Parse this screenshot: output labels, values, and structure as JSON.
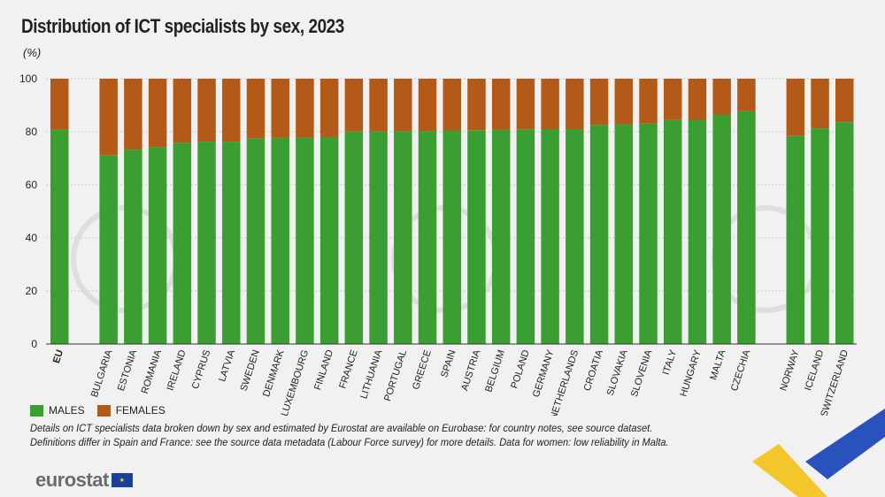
{
  "title": "Distribution of ICT specialists by sex, 2023",
  "unit": "(%)",
  "legend": {
    "males": "MALES",
    "females": "FEMALES"
  },
  "colors": {
    "males": "#3a9e32",
    "females": "#b35a19",
    "grid": "#c9c9c9",
    "axis": "#333333"
  },
  "notes": [
    "Details on ICT specialists data broken down by sex and estimated by Eurostat are available on Eurobase: for country notes, see source dataset.",
    "Definitions differ in Spain and France: see the source data metadata (Labour Force survey) for more details. Data for women: low reliability in Malta."
  ],
  "logo": {
    "text": "eurostat",
    "icon": "eu-flag-icon"
  },
  "chart_data": {
    "type": "bar",
    "stacked": true,
    "title": "Distribution of ICT specialists by sex, 2023",
    "ylabel": "(%)",
    "ylim": [
      0,
      100
    ],
    "yticks": [
      0,
      20,
      40,
      60,
      80,
      100
    ],
    "grid": true,
    "groups": [
      [
        "EU"
      ],
      [
        "BULGARIA",
        "ESTONIA",
        "ROMANIA",
        "IRELAND",
        "CYPRUS",
        "LATVIA",
        "SWEDEN",
        "DENMARK",
        "LUXEMBOURG",
        "FINLAND",
        "FRANCE",
        "LITHUANIA",
        "PORTUGAL",
        "GREECE",
        "SPAIN",
        "AUSTRIA",
        "BELGIUM",
        "POLAND",
        "GERMANY",
        "NETHERLANDS",
        "CROATIA",
        "SLOVAKIA",
        "SLOVENIA",
        "ITALY",
        "HUNGARY",
        "MALTA",
        "CZECHIA"
      ],
      [
        "NORWAY",
        "ICELAND",
        "SWITZERLAND"
      ]
    ],
    "categories": [
      "EU",
      "BULGARIA",
      "ESTONIA",
      "ROMANIA",
      "IRELAND",
      "CYPRUS",
      "LATVIA",
      "SWEDEN",
      "DENMARK",
      "LUXEMBOURG",
      "FINLAND",
      "FRANCE",
      "LITHUANIA",
      "PORTUGAL",
      "GREECE",
      "SPAIN",
      "AUSTRIA",
      "BELGIUM",
      "POLAND",
      "GERMANY",
      "NETHERLANDS",
      "CROATIA",
      "SLOVAKIA",
      "SLOVENIA",
      "ITALY",
      "HUNGARY",
      "MALTA",
      "CZECHIA",
      "NORWAY",
      "ICELAND",
      "SWITZERLAND"
    ],
    "series": [
      {
        "name": "MALES",
        "values": [
          80.8,
          71.1,
          73.3,
          74.2,
          75.9,
          76.3,
          76.3,
          77.4,
          77.7,
          77.8,
          78.0,
          80.1,
          80.1,
          80.2,
          80.3,
          80.5,
          80.6,
          80.7,
          80.9,
          81.0,
          81.0,
          82.6,
          82.8,
          83.1,
          84.4,
          84.5,
          86.5,
          87.7,
          78.4,
          81.3,
          83.6
        ]
      },
      {
        "name": "FEMALES",
        "values": [
          19.2,
          28.9,
          26.7,
          25.8,
          24.1,
          23.7,
          23.7,
          22.6,
          22.3,
          22.2,
          22.0,
          19.9,
          19.9,
          19.8,
          19.7,
          19.5,
          19.4,
          19.3,
          19.1,
          19.0,
          19.0,
          17.4,
          17.2,
          16.9,
          15.6,
          15.5,
          13.5,
          12.3,
          21.6,
          18.7,
          16.4
        ]
      }
    ]
  }
}
